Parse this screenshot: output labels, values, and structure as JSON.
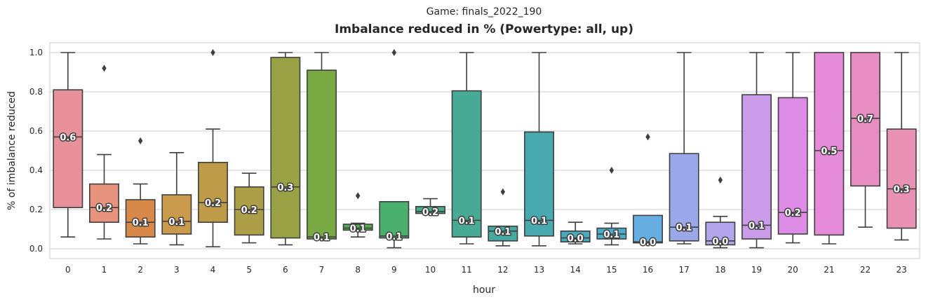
{
  "chart_data": {
    "type": "box",
    "subtitle": "Game: finals_2022_190",
    "title": "Imbalance reduced in % (Powertype: all, up)",
    "xlabel": "hour",
    "ylabel": "% of imbalance reduced",
    "ylim": [
      -0.05,
      1.05
    ],
    "yticks": [
      "0.0",
      "0.2",
      "0.4",
      "0.6",
      "0.8",
      "1.0"
    ],
    "ytick_values": [
      0.0,
      0.2,
      0.4,
      0.6,
      0.8,
      1.0
    ],
    "grid": true,
    "legend": "none",
    "categories": [
      "0",
      "1",
      "2",
      "3",
      "4",
      "5",
      "6",
      "7",
      "8",
      "9",
      "10",
      "11",
      "12",
      "13",
      "14",
      "15",
      "16",
      "17",
      "18",
      "19",
      "20",
      "21",
      "22",
      "23"
    ],
    "boxes": [
      {
        "x": "0",
        "whislo": 0.06,
        "q1": 0.21,
        "med": 0.57,
        "q3": 0.81,
        "whishi": 1.0,
        "fliers": [],
        "label": "0.6",
        "color": "#e8919b"
      },
      {
        "x": "1",
        "whislo": 0.05,
        "q1": 0.135,
        "med": 0.21,
        "q3": 0.33,
        "whishi": 0.48,
        "fliers": [
          0.92
        ],
        "label": "0.2",
        "color": "#e8937e"
      },
      {
        "x": "2",
        "whislo": 0.025,
        "q1": 0.06,
        "med": 0.135,
        "q3": 0.25,
        "whishi": 0.33,
        "fliers": [
          0.55
        ],
        "label": "0.1",
        "color": "#d8894a"
      },
      {
        "x": "3",
        "whislo": 0.02,
        "q1": 0.075,
        "med": 0.14,
        "q3": 0.275,
        "whishi": 0.49,
        "fliers": [],
        "label": "0.1",
        "color": "#c99a4c"
      },
      {
        "x": "4",
        "whislo": 0.01,
        "q1": 0.135,
        "med": 0.235,
        "q3": 0.44,
        "whishi": 0.61,
        "fliers": [
          1.0
        ],
        "label": "0.2",
        "color": "#bd9b48"
      },
      {
        "x": "5",
        "whislo": 0.03,
        "q1": 0.07,
        "med": 0.2,
        "q3": 0.315,
        "whishi": 0.385,
        "fliers": [],
        "label": "0.2",
        "color": "#ac9f48"
      },
      {
        "x": "6",
        "whislo": 0.02,
        "q1": 0.055,
        "med": 0.315,
        "q3": 0.975,
        "whishi": 1.0,
        "fliers": [],
        "label": "0.3",
        "color": "#98a245"
      },
      {
        "x": "7",
        "whislo": 0.05,
        "q1": 0.05,
        "med": 0.06,
        "q3": 0.91,
        "whishi": 1.0,
        "fliers": [],
        "label": "0.1",
        "color": "#79a943"
      },
      {
        "x": "8",
        "whislo": 0.06,
        "q1": 0.095,
        "med": 0.105,
        "q3": 0.125,
        "whishi": 0.13,
        "fliers": [
          0.27
        ],
        "label": "0.1",
        "color": "#54ae4f"
      },
      {
        "x": "9",
        "whislo": 0.005,
        "q1": 0.055,
        "med": 0.065,
        "q3": 0.24,
        "whishi": 0.24,
        "fliers": [
          1.0
        ],
        "label": "0.1",
        "color": "#4aae6c"
      },
      {
        "x": "10",
        "whislo": 0.175,
        "q1": 0.18,
        "med": 0.19,
        "q3": 0.215,
        "whishi": 0.255,
        "fliers": [],
        "label": "0.2",
        "color": "#48ac87"
      },
      {
        "x": "11",
        "whislo": 0.025,
        "q1": 0.06,
        "med": 0.145,
        "q3": 0.805,
        "whishi": 1.0,
        "fliers": [],
        "label": "0.1",
        "color": "#47aa94"
      },
      {
        "x": "12",
        "whislo": 0.015,
        "q1": 0.04,
        "med": 0.09,
        "q3": 0.115,
        "whishi": 0.115,
        "fliers": [
          0.29
        ],
        "label": "0.1",
        "color": "#46a9a1"
      },
      {
        "x": "13",
        "whislo": 0.015,
        "q1": 0.065,
        "med": 0.145,
        "q3": 0.595,
        "whishi": 1.0,
        "fliers": [],
        "label": "0.1",
        "color": "#48a9af"
      },
      {
        "x": "14",
        "whislo": 0.025,
        "q1": 0.035,
        "med": 0.055,
        "q3": 0.09,
        "whishi": 0.135,
        "fliers": [],
        "label": "0.0",
        "color": "#49a9bd"
      },
      {
        "x": "15",
        "whislo": 0.02,
        "q1": 0.05,
        "med": 0.075,
        "q3": 0.105,
        "whishi": 0.13,
        "fliers": [
          0.4
        ],
        "label": "0.1",
        "color": "#4cabcb"
      },
      {
        "x": "16",
        "whislo": 0.03,
        "q1": 0.03,
        "med": 0.035,
        "q3": 0.17,
        "whishi": 0.17,
        "fliers": [
          0.57
        ],
        "label": "0.0",
        "color": "#66aee2"
      },
      {
        "x": "17",
        "whislo": 0.025,
        "q1": 0.04,
        "med": 0.11,
        "q3": 0.485,
        "whishi": 1.0,
        "fliers": [],
        "label": "0.1",
        "color": "#9aa8ea"
      },
      {
        "x": "18",
        "whislo": 0.005,
        "q1": 0.02,
        "med": 0.04,
        "q3": 0.135,
        "whishi": 0.165,
        "fliers": [
          0.35
        ],
        "label": "0.0",
        "color": "#b3a5ec"
      },
      {
        "x": "19",
        "whislo": 0.005,
        "q1": 0.05,
        "med": 0.12,
        "q3": 0.785,
        "whishi": 1.0,
        "fliers": [],
        "label": "0.1",
        "color": "#c99be9"
      },
      {
        "x": "20",
        "whislo": 0.03,
        "q1": 0.075,
        "med": 0.185,
        "q3": 0.77,
        "whishi": 1.0,
        "fliers": [],
        "label": "0.2",
        "color": "#dd8ce6"
      },
      {
        "x": "21",
        "whislo": 0.025,
        "q1": 0.07,
        "med": 0.5,
        "q3": 1.0,
        "whishi": 1.0,
        "fliers": [],
        "label": "0.5",
        "color": "#e58ad8"
      },
      {
        "x": "22",
        "whislo": 0.11,
        "q1": 0.32,
        "med": 0.665,
        "q3": 1.0,
        "whishi": 1.0,
        "fliers": [],
        "label": "0.7",
        "color": "#e78dc2"
      },
      {
        "x": "23",
        "whislo": 0.045,
        "q1": 0.105,
        "med": 0.305,
        "q3": 0.61,
        "whishi": 1.0,
        "fliers": [],
        "label": "0.3",
        "color": "#e891b3"
      }
    ]
  }
}
